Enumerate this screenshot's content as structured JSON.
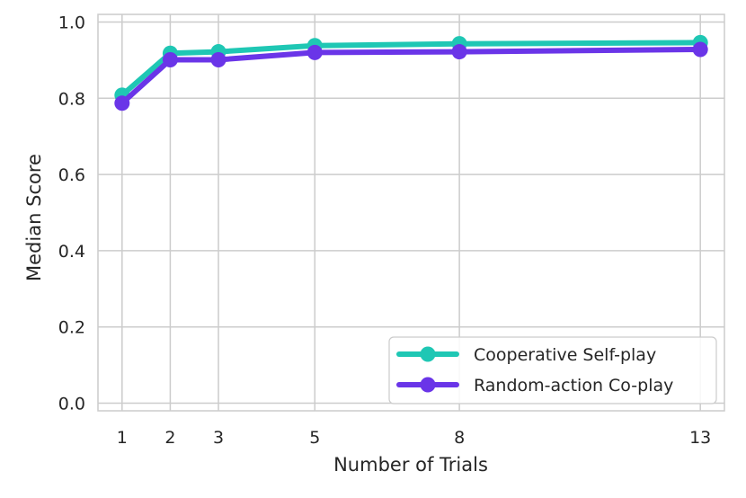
{
  "chart_data": {
    "type": "line",
    "title": "",
    "xlabel": "Number of Trials",
    "ylabel": "Median Score",
    "x": [
      1,
      2,
      3,
      5,
      8,
      13
    ],
    "xticks": [
      "1",
      "2",
      "3",
      "5",
      "8",
      "13"
    ],
    "yticks": [
      "0.0",
      "0.2",
      "0.4",
      "0.6",
      "0.8",
      "1.0"
    ],
    "ylim": [
      -0.02,
      1.02
    ],
    "xlim": [
      0.5,
      13.5
    ],
    "grid": true,
    "legend_position": "bottom-right",
    "series": [
      {
        "name": "Cooperative Self-play",
        "color": "#1fc7b4",
        "values": [
          0.808,
          0.918,
          0.922,
          0.938,
          0.943,
          0.946
        ]
      },
      {
        "name": "Random-action Co-play",
        "color": "#6a35e8",
        "values": [
          0.787,
          0.901,
          0.901,
          0.92,
          0.922,
          0.928
        ]
      }
    ]
  }
}
